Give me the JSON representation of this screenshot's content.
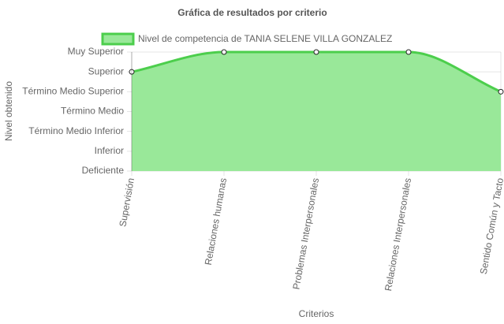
{
  "chart_data": {
    "type": "area",
    "title": "Gráfica de resultados por criterio",
    "xlabel": "Criterios",
    "ylabel": "Nivel obtenido",
    "categories": [
      "Supervisión",
      "Relaciones humanas",
      "Problemas Interpersonales",
      "Relaciones Interpersonales",
      "Sentido Común y Tacto"
    ],
    "series": [
      {
        "name": "Nivel de competencia de TANIA SELENE VILLA GONZALEZ",
        "color": "#4cce4c",
        "fill": "#99e899",
        "values": [
          5,
          6,
          6,
          6,
          4
        ]
      }
    ],
    "ylim": [
      0,
      6
    ],
    "yticks": [
      {
        "value": 0,
        "label": "Deficiente"
      },
      {
        "value": 1,
        "label": "Inferior"
      },
      {
        "value": 2,
        "label": "Término Medio Inferior"
      },
      {
        "value": 3,
        "label": "Término Medio"
      },
      {
        "value": 4,
        "label": "Término Medio Superior"
      },
      {
        "value": 5,
        "label": "Superior"
      },
      {
        "value": 6,
        "label": "Muy Superior"
      }
    ],
    "grid": true,
    "legend": "top"
  }
}
